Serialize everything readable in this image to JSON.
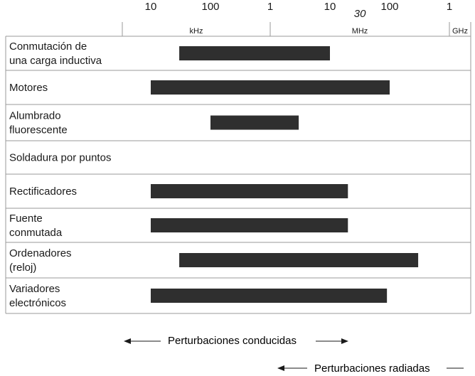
{
  "chart_data": {
    "type": "bar",
    "orientation": "horizontal-range",
    "x_scale": "log",
    "x_unit": "Hz",
    "tick_labels": [
      "10",
      "100",
      "1",
      "10",
      "100",
      "1"
    ],
    "tick_values_hz": [
      10000,
      100000,
      1000000,
      10000000,
      100000000,
      1000000000
    ],
    "unit_bands": [
      {
        "label": "kHz",
        "from_hz": 10000,
        "to_hz": 1000000
      },
      {
        "label": "MHz",
        "from_hz": 1000000,
        "to_hz": 1000000000
      },
      {
        "label": "GHz",
        "from_hz": 1000000000,
        "to_hz": 1300000000
      }
    ],
    "marker": {
      "label": "30",
      "value_hz": 30000000
    },
    "xlim_hz": [
      10000,
      1000000000
    ],
    "categories": [
      "Conmutación de\nuna carga inductiva",
      "Motores",
      "Alumbrado\nfluorescente",
      "Soldadura por puntos",
      "Rectificadores",
      "Fuente\nconmutada",
      "Ordenadores\n(reloj)",
      "Variadores\nelectrónicos"
    ],
    "ranges_hz": [
      [
        30000,
        10000000
      ],
      [
        10000,
        100000000
      ],
      [
        100000,
        3000000
      ],
      null,
      [
        10000,
        20000000
      ],
      [
        10000,
        20000000
      ],
      [
        30000,
        300000000
      ],
      [
        10000,
        90000000
      ]
    ],
    "grid": false,
    "legend": "none"
  },
  "annotations": {
    "conducted_label": "Perturbaciones conducidas",
    "radiated_label": "Perturbaciones radiadas"
  },
  "colors": {
    "bar": "#2f2f2f",
    "line": "#9a9a9a",
    "text": "#1a1a1a"
  }
}
